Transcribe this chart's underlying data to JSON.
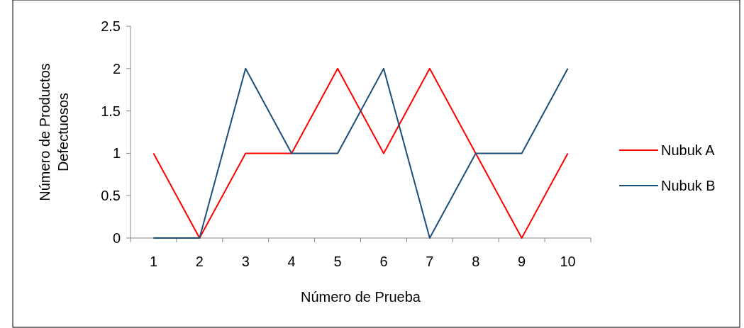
{
  "chart_data": {
    "type": "line",
    "xlabel": "Número de Prueba",
    "ylabel": "Número de Productos Defectuosos",
    "categories": [
      "1",
      "2",
      "3",
      "4",
      "5",
      "6",
      "7",
      "8",
      "9",
      "10"
    ],
    "series": [
      {
        "name": "Nubuk A",
        "color": "#ff0000",
        "values": [
          1,
          0,
          1,
          1,
          2,
          1,
          2,
          1,
          0,
          1
        ]
      },
      {
        "name": "Nubuk B",
        "color": "#1f4e79",
        "values": [
          0,
          0,
          2,
          1,
          1,
          2,
          0,
          1,
          1,
          2
        ]
      }
    ],
    "ylim": [
      0,
      2.5
    ],
    "yticks": [
      0,
      0.5,
      1,
      1.5,
      2,
      2.5
    ],
    "grid": false,
    "legend": "right",
    "marker": "none",
    "line_style": "solid"
  }
}
